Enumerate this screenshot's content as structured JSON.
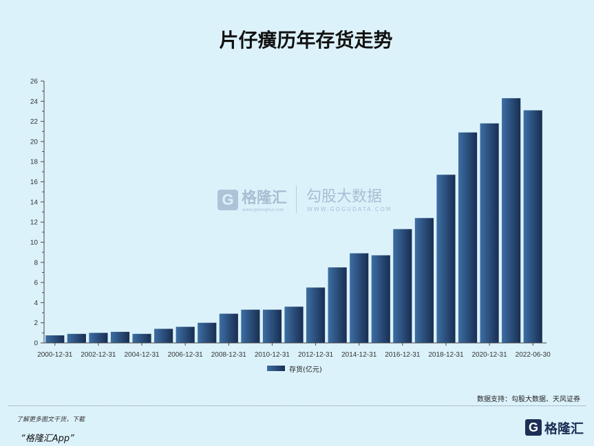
{
  "chart_data": {
    "type": "bar",
    "title": "片仔癀历年存货走势",
    "x": [
      "2000-12-31",
      "2001-12-31",
      "2002-12-31",
      "2003-12-31",
      "2004-12-31",
      "2005-12-31",
      "2006-12-31",
      "2007-12-31",
      "2008-12-31",
      "2009-12-31",
      "2010-12-31",
      "2011-12-31",
      "2012-12-31",
      "2013-12-31",
      "2014-12-31",
      "2015-12-31",
      "2016-12-31",
      "2017-12-31",
      "2018-12-31",
      "2019-12-31",
      "2020-12-31",
      "2021-12-31",
      "2022-06-30"
    ],
    "series": [
      {
        "name": "存货(亿元)",
        "values": [
          0.75,
          0.9,
          1.0,
          1.1,
          0.9,
          1.4,
          1.6,
          2.0,
          2.9,
          3.3,
          3.3,
          3.6,
          5.5,
          7.5,
          8.9,
          8.7,
          11.3,
          12.4,
          16.7,
          20.9,
          21.8,
          24.3,
          23.1
        ]
      }
    ],
    "xtick_labels": [
      "2000-12-31",
      "2002-12-31",
      "2004-12-31",
      "2006-12-31",
      "2008-12-31",
      "2010-12-31",
      "2012-12-31",
      "2014-12-31",
      "2016-12-31",
      "2018-12-31",
      "2020-12-31",
      "2022-06-30"
    ],
    "ylim": [
      0,
      26
    ],
    "yticks": [
      0,
      2,
      4,
      6,
      8,
      10,
      12,
      14,
      16,
      18,
      20,
      22,
      24,
      26
    ],
    "grid": false,
    "legend": "bottom-center"
  },
  "source": "数据支持：勾股大数据、天风证券",
  "footer": {
    "line1": "了解更多图文干货，下载",
    "line2": "“格隆汇App”"
  },
  "logo": {
    "icon": "G",
    "name": "格隆汇"
  },
  "watermark": {
    "name1": "格隆汇",
    "url1": "www.gelonghui.com",
    "name2": "勾股大数据",
    "url2": "WWW.GOGUDATA.COM"
  },
  "colors": {
    "background": "#dcf2fb",
    "bar_light": "#3d6ea3",
    "bar_dark": "#182e52",
    "axis": "#444444"
  }
}
